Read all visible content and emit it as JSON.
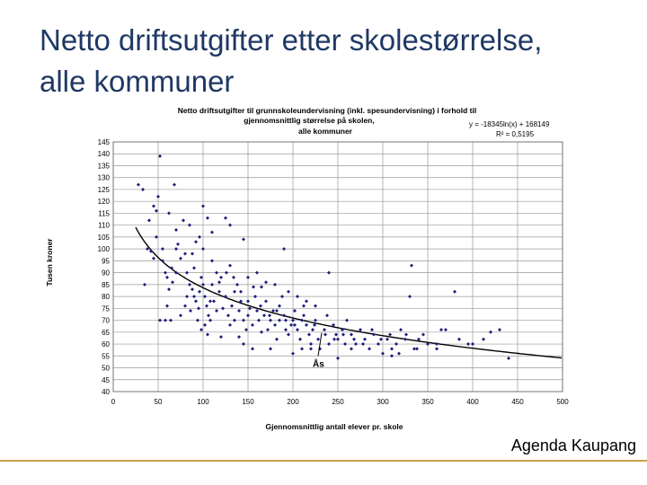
{
  "slide": {
    "title_line1": "Netto driftsutgifter etter skolestørrelse,",
    "title_line2": "alle kommuner",
    "footer": "Agenda Kaupang"
  },
  "colors": {
    "title": "#1f3864",
    "points": "#1c1c7a",
    "trend": "#000000",
    "grid": "#999999",
    "footer_line": "#c8a24a"
  },
  "chart_data": {
    "type": "scatter",
    "title_lines": [
      "Netto driftsutgifter til grunnskoleundervisning (inkl. spesundervisning) i forhold til",
      "gjennomsnittlig størrelse på skolen,",
      "alle kommuner"
    ],
    "equation": "y = -18345ln(x) + 168149",
    "r2": "R² = 0,5195",
    "xlabel": "Gjennomsnittlig antall elever pr. skole",
    "ylabel": "Tusen kroner",
    "xlim": [
      0,
      500
    ],
    "ylim": [
      40,
      145
    ],
    "x_ticks": [
      "0",
      "50",
      "100",
      "150",
      "200",
      "250",
      "300",
      "350",
      "400",
      "450",
      "500"
    ],
    "y_ticks": [
      "40",
      "45",
      "50",
      "55",
      "60",
      "65",
      "70",
      "75",
      "80",
      "85",
      "90",
      "95",
      "100",
      "105",
      "110",
      "115",
      "120",
      "125",
      "130",
      "135",
      "140",
      "145"
    ],
    "grid": true,
    "trend": {
      "type": "logarithmic",
      "a": -18345,
      "b": 168149,
      "x_from": 25,
      "x_to": 500
    },
    "annotation": {
      "label": "Ås",
      "x": 232,
      "y": 65.5
    },
    "points": [
      [
        28,
        127
      ],
      [
        33,
        125
      ],
      [
        40,
        112
      ],
      [
        45,
        118
      ],
      [
        48,
        116
      ],
      [
        52,
        139
      ],
      [
        55,
        100
      ],
      [
        50,
        122
      ],
      [
        42,
        99
      ],
      [
        38,
        100
      ],
      [
        35,
        85
      ],
      [
        45,
        96
      ],
      [
        48,
        105
      ],
      [
        55,
        95
      ],
      [
        58,
        90
      ],
      [
        60,
        88
      ],
      [
        62,
        83
      ],
      [
        65,
        92
      ],
      [
        68,
        127
      ],
      [
        70,
        100
      ],
      [
        72,
        102
      ],
      [
        75,
        96
      ],
      [
        80,
        98
      ],
      [
        82,
        90
      ],
      [
        85,
        85
      ],
      [
        88,
        83
      ],
      [
        90,
        80
      ],
      [
        92,
        78
      ],
      [
        95,
        75
      ],
      [
        96,
        82
      ],
      [
        98,
        88
      ],
      [
        100,
        85
      ],
      [
        102,
        80
      ],
      [
        104,
        76
      ],
      [
        106,
        72
      ],
      [
        108,
        70
      ],
      [
        110,
        85
      ],
      [
        112,
        78
      ],
      [
        115,
        74
      ],
      [
        118,
        82
      ],
      [
        120,
        88
      ],
      [
        122,
        75
      ],
      [
        125,
        80
      ],
      [
        128,
        72
      ],
      [
        130,
        68
      ],
      [
        132,
        76
      ],
      [
        135,
        70
      ],
      [
        138,
        85
      ],
      [
        140,
        74
      ],
      [
        142,
        78
      ],
      [
        145,
        70
      ],
      [
        148,
        66
      ],
      [
        150,
        72
      ],
      [
        152,
        75
      ],
      [
        155,
        68
      ],
      [
        158,
        80
      ],
      [
        160,
        74
      ],
      [
        162,
        70
      ],
      [
        165,
        65
      ],
      [
        168,
        72
      ],
      [
        170,
        78
      ],
      [
        172,
        66
      ],
      [
        175,
        70
      ],
      [
        178,
        74
      ],
      [
        180,
        68
      ],
      [
        182,
        62
      ],
      [
        185,
        70
      ],
      [
        188,
        80
      ],
      [
        190,
        72
      ],
      [
        192,
        66
      ],
      [
        195,
        64
      ],
      [
        198,
        68
      ],
      [
        200,
        70
      ],
      [
        202,
        74
      ],
      [
        205,
        66
      ],
      [
        208,
        62
      ],
      [
        210,
        70
      ],
      [
        212,
        76
      ],
      [
        215,
        68
      ],
      [
        218,
        64
      ],
      [
        220,
        60
      ],
      [
        222,
        66
      ],
      [
        225,
        70
      ],
      [
        228,
        62
      ],
      [
        230,
        58
      ],
      [
        235,
        66
      ],
      [
        238,
        72
      ],
      [
        240,
        60
      ],
      [
        245,
        68
      ],
      [
        248,
        64
      ],
      [
        250,
        62
      ],
      [
        255,
        66
      ],
      [
        258,
        60
      ],
      [
        260,
        70
      ],
      [
        265,
        64
      ],
      [
        270,
        60
      ],
      [
        275,
        66
      ],
      [
        280,
        62
      ],
      [
        285,
        58
      ],
      [
        290,
        64
      ],
      [
        295,
        60
      ],
      [
        300,
        56
      ],
      [
        305,
        62
      ],
      [
        310,
        58
      ],
      [
        315,
        60
      ],
      [
        320,
        66
      ],
      [
        325,
        62
      ],
      [
        330,
        80
      ],
      [
        332,
        93
      ],
      [
        335,
        58
      ],
      [
        340,
        62
      ],
      [
        345,
        64
      ],
      [
        350,
        60
      ],
      [
        360,
        58
      ],
      [
        370,
        66
      ],
      [
        380,
        82
      ],
      [
        385,
        62
      ],
      [
        400,
        60
      ],
      [
        420,
        65
      ],
      [
        430,
        66
      ],
      [
        440,
        54
      ],
      [
        100,
        118
      ],
      [
        105,
        113
      ],
      [
        110,
        107
      ],
      [
        96,
        105
      ],
      [
        92,
        103
      ],
      [
        125,
        113
      ],
      [
        130,
        110
      ],
      [
        145,
        104
      ],
      [
        190,
        100
      ],
      [
        240,
        90
      ],
      [
        130,
        93
      ],
      [
        85,
        110
      ],
      [
        78,
        112
      ],
      [
        62,
        115
      ],
      [
        70,
        108
      ],
      [
        115,
        90
      ],
      [
        90,
        92
      ],
      [
        80,
        76
      ],
      [
        75,
        72
      ],
      [
        60,
        76
      ],
      [
        58,
        70
      ],
      [
        52,
        70
      ],
      [
        64,
        70
      ],
      [
        98,
        66
      ],
      [
        105,
        64
      ],
      [
        120,
        63
      ],
      [
        140,
        63
      ],
      [
        145,
        60
      ],
      [
        155,
        58
      ],
      [
        175,
        58
      ],
      [
        200,
        56
      ],
      [
        210,
        58
      ],
      [
        220,
        58
      ],
      [
        250,
        54
      ],
      [
        265,
        58
      ],
      [
        310,
        55
      ],
      [
        318,
        56
      ],
      [
        150,
        88
      ],
      [
        160,
        90
      ],
      [
        170,
        86
      ],
      [
        180,
        85
      ],
      [
        195,
        82
      ],
      [
        205,
        80
      ],
      [
        215,
        78
      ],
      [
        225,
        76
      ],
      [
        185,
        76
      ],
      [
        165,
        84
      ],
      [
        135,
        82
      ],
      [
        110,
        95
      ],
      [
        100,
        100
      ],
      [
        88,
        98
      ],
      [
        70,
        90
      ],
      [
        66,
        86
      ],
      [
        82,
        80
      ],
      [
        86,
        74
      ],
      [
        94,
        70
      ],
      [
        102,
        68
      ],
      [
        108,
        78
      ],
      [
        118,
        86
      ],
      [
        126,
        90
      ],
      [
        134,
        88
      ],
      [
        142,
        82
      ],
      [
        150,
        78
      ],
      [
        156,
        84
      ],
      [
        164,
        76
      ],
      [
        174,
        72
      ],
      [
        182,
        74
      ],
      [
        192,
        70
      ],
      [
        202,
        68
      ],
      [
        212,
        72
      ],
      [
        224,
        68
      ],
      [
        236,
        64
      ],
      [
        246,
        62
      ],
      [
        256,
        64
      ],
      [
        268,
        62
      ],
      [
        278,
        60
      ],
      [
        288,
        66
      ],
      [
        298,
        62
      ],
      [
        308,
        64
      ],
      [
        326,
        64
      ],
      [
        338,
        58
      ],
      [
        360,
        60
      ],
      [
        365,
        66
      ],
      [
        395,
        60
      ],
      [
        412,
        62
      ]
    ]
  }
}
